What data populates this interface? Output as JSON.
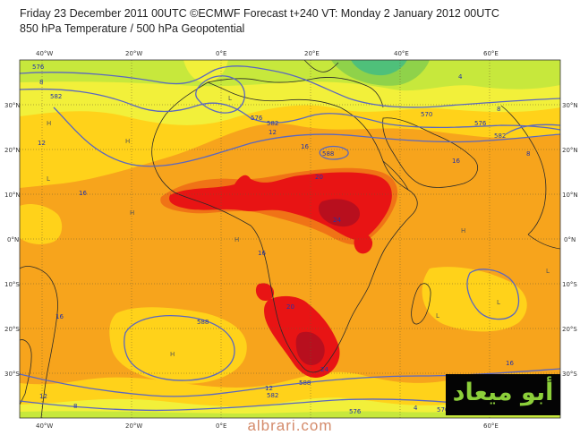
{
  "header": {
    "line1": "Friday 23 December 2011 00UTC ©ECMWF Forecast t+240 VT: Monday 2 January 2012 00UTC",
    "line2": "850 hPa Temperature / 500 hPa Geopotential"
  },
  "map": {
    "lon_labels": [
      "40°W",
      "20°W",
      "0°E",
      "20°E",
      "40°E",
      "60°E"
    ],
    "lat_labels": [
      "30°N",
      "20°N",
      "10°N",
      "0°N",
      "10°S",
      "20°S",
      "30°S"
    ],
    "isotherm_labels": [
      "8",
      "12",
      "16",
      "20",
      "24",
      "4",
      "8",
      "12",
      "16",
      "16",
      "12",
      "8",
      "4",
      "16",
      "16",
      "20",
      "24",
      "16",
      "12",
      "8"
    ],
    "geopotential_labels": [
      "576",
      "582",
      "588",
      "582",
      "576",
      "570",
      "576",
      "582",
      "588",
      "588",
      "582",
      "576",
      "570"
    ],
    "pressure_centres": [
      "H",
      "H",
      "H",
      "L",
      "H",
      "L",
      "L",
      "H",
      "L",
      "H",
      "L"
    ],
    "palette": {
      "t_cold_4": "#8fd24a",
      "t_8": "#c7e83c",
      "t_12": "#f2f03a",
      "t_16": "#ffd21a",
      "t_20": "#f7a41c",
      "t_24": "#f07316",
      "t_hot": "#e81414",
      "t_max": "#b80f1e",
      "contour": "#5a67c0",
      "coast": "#2a2a2a",
      "grid": "#6b5a2a"
    }
  },
  "logo": {
    "text": "أبو ميعاد"
  },
  "watermark": {
    "text": "albrari.com"
  }
}
